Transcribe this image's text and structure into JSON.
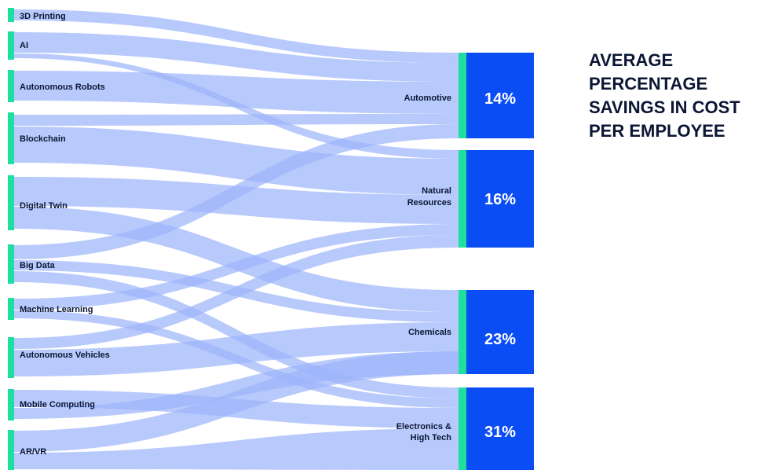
{
  "chart_data": {
    "type": "sankey",
    "title_lines": [
      "AVERAGE",
      "PERCENTAGE",
      "SAVINGS IN COST",
      "PER EMPLOYEE"
    ],
    "sources": [
      "3D Printing",
      "AI",
      "Autonomous Robots",
      "Blockchain",
      "Digital Twin",
      "Big Data",
      "Machine Learning",
      "Autonomous Vehicles",
      "Mobile Computing",
      "AR/VR"
    ],
    "targets": [
      {
        "name": "Automotive",
        "value_label": "14%",
        "value": 14
      },
      {
        "name": "Natural Resources",
        "label_lines": [
          "Natural",
          "Resources"
        ],
        "value_label": "16%",
        "value": 16
      },
      {
        "name": "Chemicals",
        "value_label": "23%",
        "value": 23
      },
      {
        "name": "Electronics & High Tech",
        "label_lines": [
          "Electronics &",
          "High Tech"
        ],
        "value_label": "31%",
        "value": 31
      }
    ],
    "colors": {
      "link": "#9db4fb",
      "node": "#1de0a0",
      "target_box": "#0b4df5",
      "text": "#0a1633",
      "target_text": "#ffffff"
    }
  }
}
